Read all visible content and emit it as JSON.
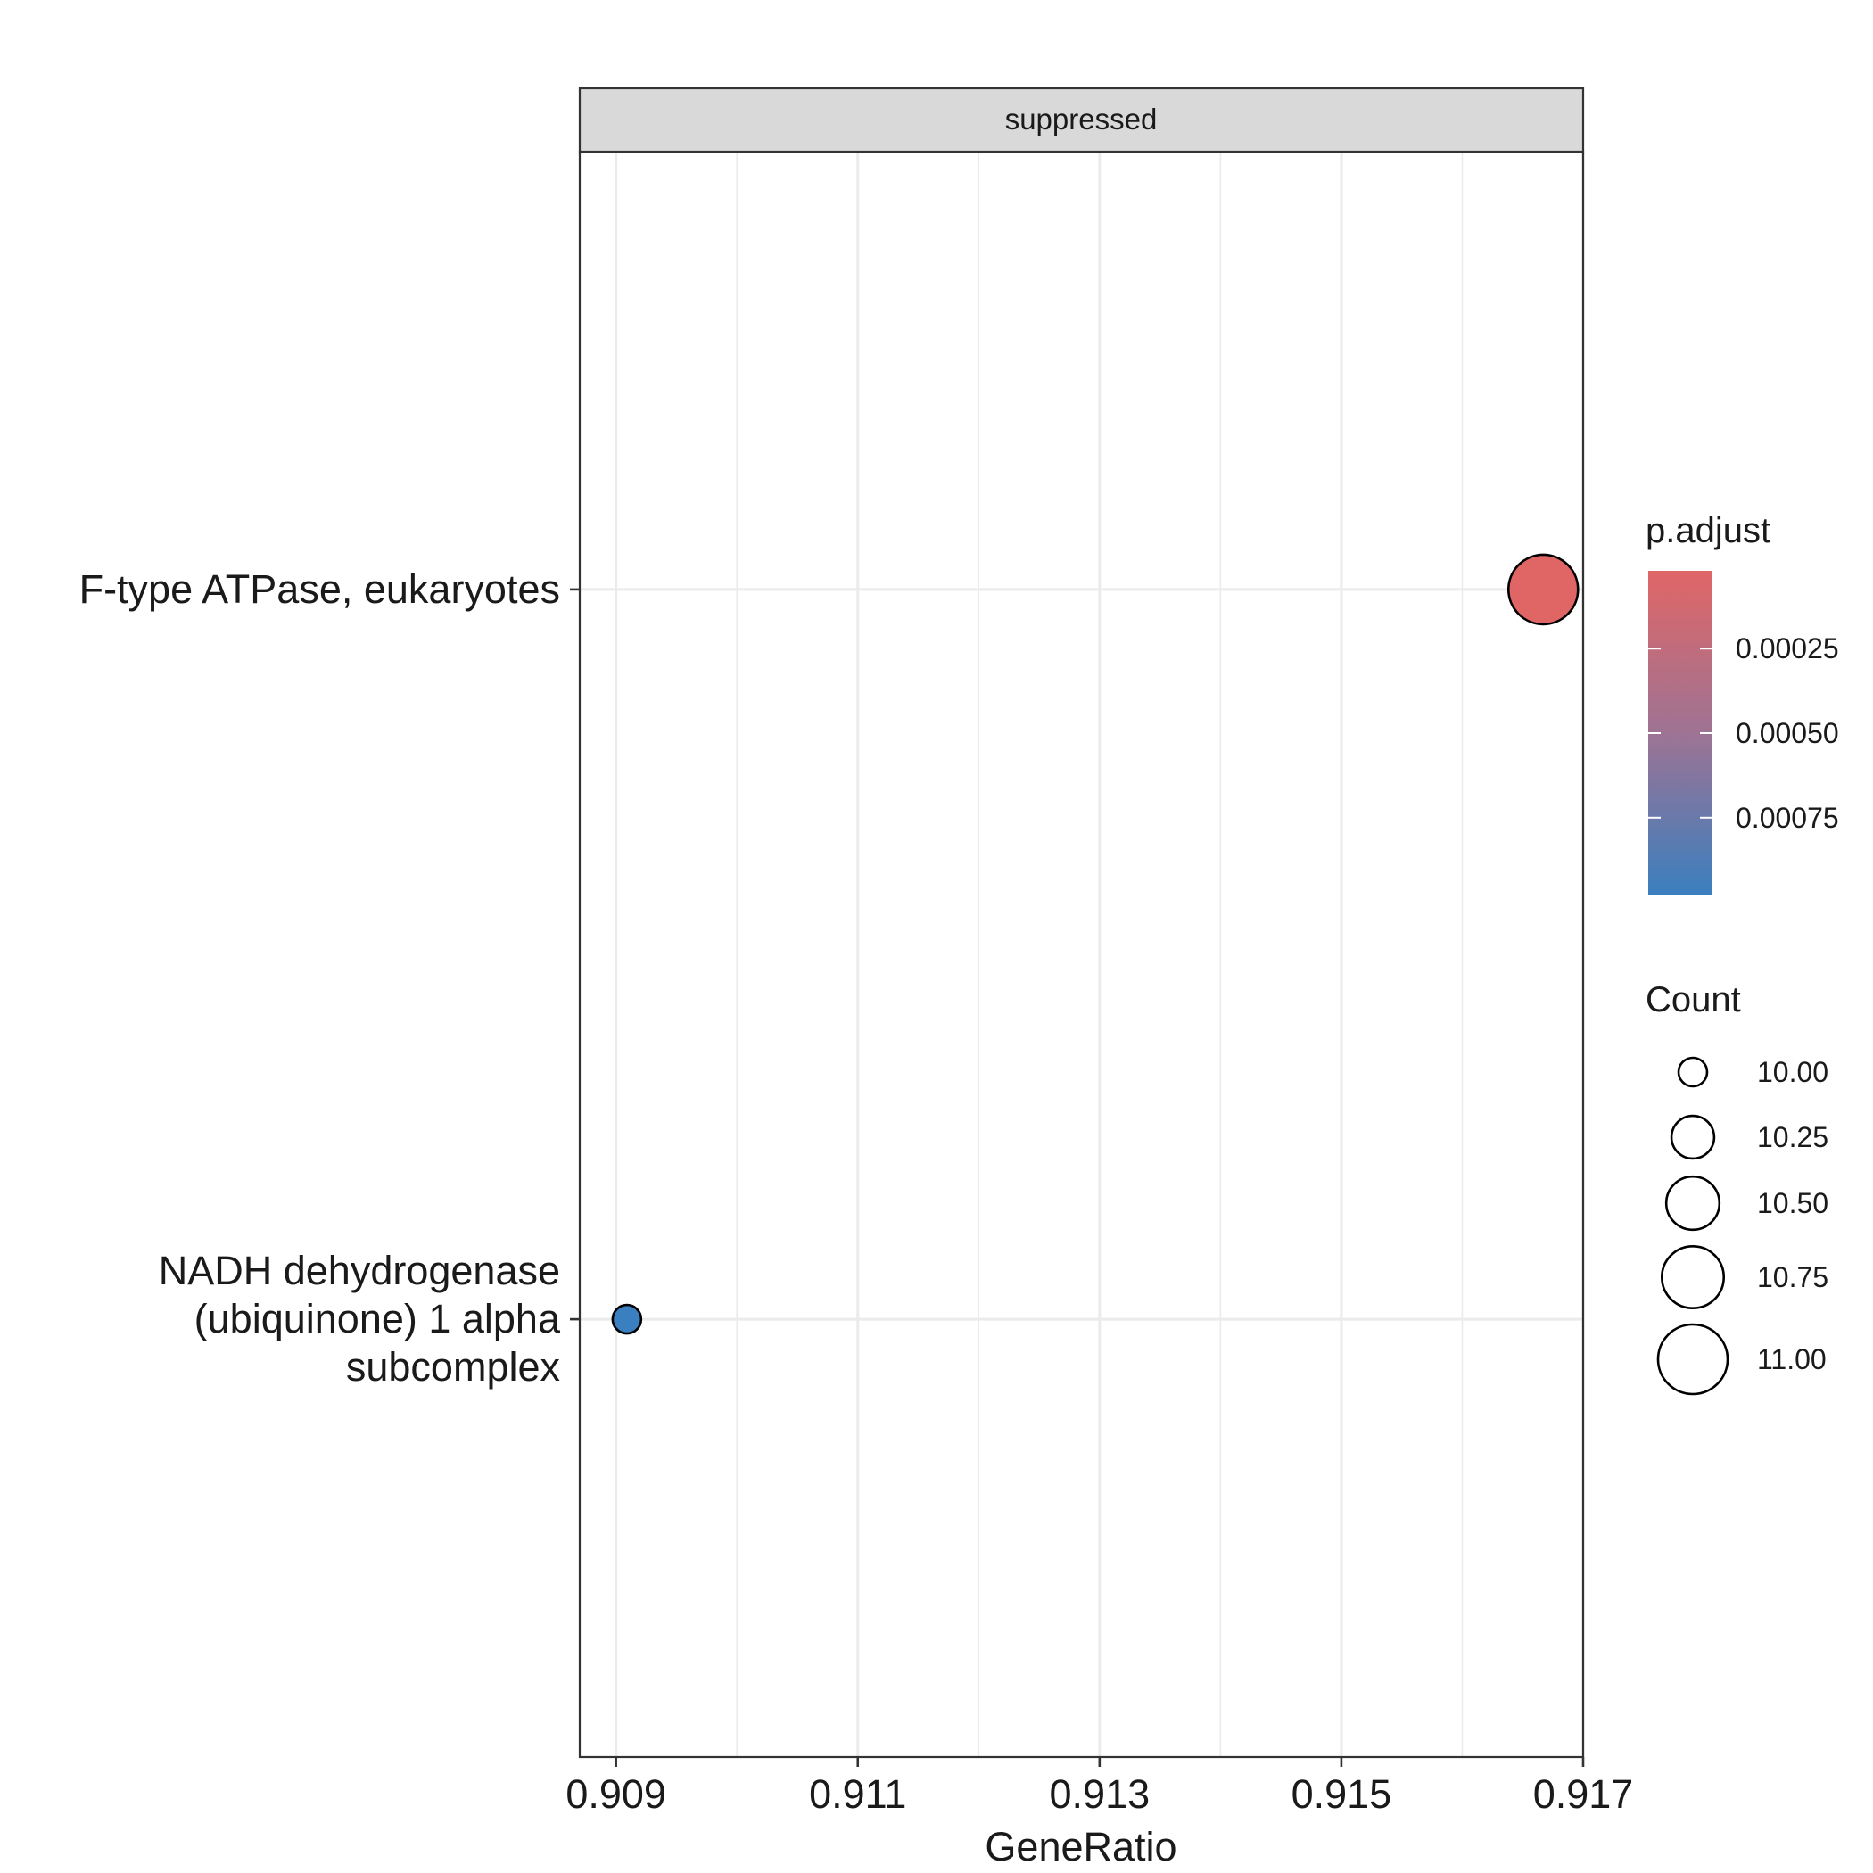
{
  "chart_data": {
    "type": "scatter",
    "facet_label": "suppressed",
    "xlabel": "GeneRatio",
    "ylabel": "",
    "xlim": [
      0.9087,
      0.917
    ],
    "x_ticks": [
      "0.909",
      "0.911",
      "0.913",
      "0.915",
      "0.917"
    ],
    "x_tick_values": [
      0.909,
      0.911,
      0.913,
      0.915,
      0.917
    ],
    "x_minor_values": [
      0.91,
      0.912,
      0.914,
      0.916
    ],
    "categories": [
      {
        "lines": [
          "F-type ATPase, eukaryotes"
        ]
      },
      {
        "lines": [
          "NADH dehydrogenase",
          "(ubiquinone) 1 alpha",
          "subcomplex"
        ]
      }
    ],
    "points": [
      {
        "category_index": 0,
        "x": 0.91667,
        "count": 11,
        "p_adjust": 2e-05
      },
      {
        "category_index": 1,
        "x": 0.90909,
        "count": 10,
        "p_adjust": 0.00098
      }
    ],
    "grid": true,
    "legend_position": "right",
    "color_legend": {
      "title": "p.adjust",
      "range": [
        2e-05,
        0.00098
      ],
      "low_color": "#E06666",
      "high_color": "#3A7FBF",
      "ticks": [
        "0.00025",
        "0.00050",
        "0.00075"
      ],
      "tick_values": [
        0.00025,
        0.0005,
        0.00075
      ]
    },
    "size_legend": {
      "title": "Count",
      "range": [
        10,
        11
      ],
      "labels": [
        "10.00",
        "10.25",
        "10.50",
        "10.75",
        "11.00"
      ],
      "values": [
        10,
        10.25,
        10.5,
        10.75,
        11
      ]
    }
  }
}
